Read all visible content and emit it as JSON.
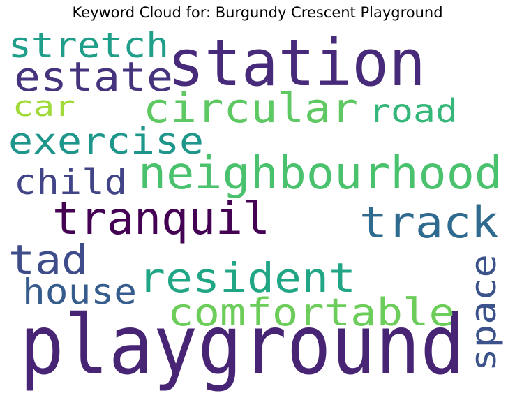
{
  "chart_data": {
    "type": "wordcloud",
    "title": "Keyword Cloud for: Burgundy Crescent Playground",
    "words": [
      {
        "text": "playground",
        "color": "#482475"
      },
      {
        "text": "station",
        "color": "#472a7a"
      },
      {
        "text": "neighbourhood",
        "color": "#4ac16d"
      },
      {
        "text": "circular",
        "color": "#5ec962"
      },
      {
        "text": "tranquil",
        "color": "#440154"
      },
      {
        "text": "track",
        "color": "#2f6b8e"
      },
      {
        "text": "resident",
        "color": "#21a685"
      },
      {
        "text": "comfortable",
        "color": "#6ccd5a"
      },
      {
        "text": "estate",
        "color": "#46337e"
      },
      {
        "text": "stretch",
        "color": "#1f9e89"
      },
      {
        "text": "exercise",
        "color": "#1f968b"
      },
      {
        "text": "road",
        "color": "#35b779"
      },
      {
        "text": "child",
        "color": "#414487"
      },
      {
        "text": "tad",
        "color": "#3e4c8a"
      },
      {
        "text": "house",
        "color": "#365c8d"
      },
      {
        "text": "space",
        "color": "#3b528b"
      },
      {
        "text": "car",
        "color": "#a0da39"
      }
    ]
  }
}
